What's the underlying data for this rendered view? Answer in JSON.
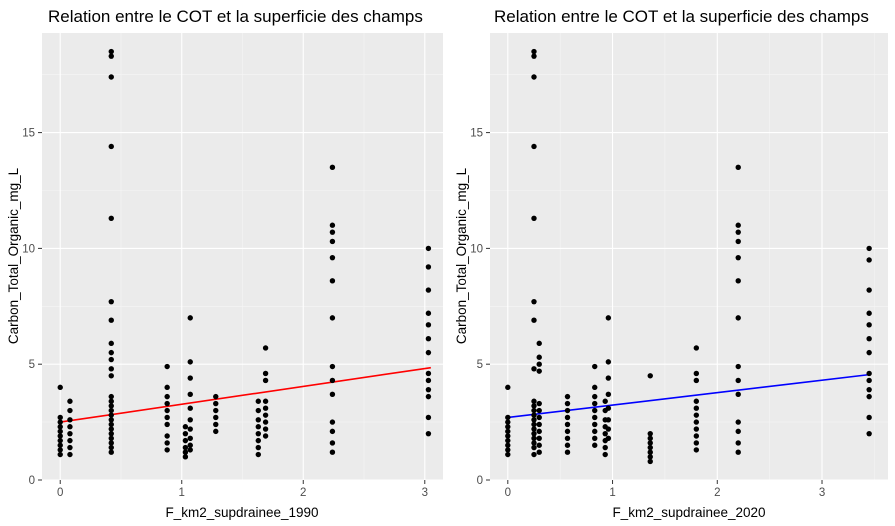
{
  "chart_data": [
    {
      "type": "scatter",
      "title": "Relation entre le COT et la superficie des champs",
      "xlabel": "F_km2_supdrainee_1990",
      "ylabel": "Carbon_Total_Organic_mg_L",
      "xlim": [
        -0.15,
        3.15
      ],
      "ylim": [
        0,
        19.3
      ],
      "xticks": [
        0,
        1,
        2,
        3
      ],
      "xtick_labels": [
        "0",
        "1",
        "2",
        "3"
      ],
      "yticks": [
        0,
        5,
        10,
        15
      ],
      "ytick_labels": [
        "0",
        "5",
        "10",
        "15"
      ],
      "grid": true,
      "background": "#EBEBEB",
      "fit_line": {
        "color": "#FF0000",
        "x": [
          0,
          3.05
        ],
        "y": [
          2.5,
          4.85
        ]
      },
      "points": [
        [
          0,
          4.0
        ],
        [
          0,
          2.7
        ],
        [
          0,
          2.5
        ],
        [
          0,
          2.3
        ],
        [
          0,
          2.1
        ],
        [
          0,
          1.9
        ],
        [
          0,
          1.7
        ],
        [
          0,
          1.5
        ],
        [
          0,
          1.3
        ],
        [
          0,
          1.1
        ],
        [
          0.08,
          3.4
        ],
        [
          0.08,
          3.0
        ],
        [
          0.08,
          2.6
        ],
        [
          0.08,
          2.3
        ],
        [
          0.08,
          2.0
        ],
        [
          0.08,
          1.7
        ],
        [
          0.08,
          1.4
        ],
        [
          0.08,
          1.1
        ],
        [
          0.42,
          18.5
        ],
        [
          0.42,
          18.3
        ],
        [
          0.42,
          17.4
        ],
        [
          0.42,
          14.4
        ],
        [
          0.42,
          11.3
        ],
        [
          0.42,
          7.7
        ],
        [
          0.42,
          6.9
        ],
        [
          0.42,
          5.9
        ],
        [
          0.42,
          5.5
        ],
        [
          0.42,
          5.2
        ],
        [
          0.42,
          4.8
        ],
        [
          0.42,
          4.5
        ],
        [
          0.42,
          3.6
        ],
        [
          0.42,
          3.4
        ],
        [
          0.42,
          3.2
        ],
        [
          0.42,
          3.0
        ],
        [
          0.42,
          2.8
        ],
        [
          0.42,
          2.6
        ],
        [
          0.42,
          2.4
        ],
        [
          0.42,
          2.2
        ],
        [
          0.42,
          2.0
        ],
        [
          0.42,
          1.8
        ],
        [
          0.42,
          1.6
        ],
        [
          0.42,
          1.4
        ],
        [
          0.42,
          1.2
        ],
        [
          0.88,
          4.9
        ],
        [
          0.88,
          4.0
        ],
        [
          0.88,
          3.6
        ],
        [
          0.88,
          3.3
        ],
        [
          0.88,
          3.0
        ],
        [
          0.88,
          2.7
        ],
        [
          0.88,
          2.4
        ],
        [
          0.88,
          1.9
        ],
        [
          0.88,
          1.6
        ],
        [
          0.88,
          1.3
        ],
        [
          1.03,
          2.3
        ],
        [
          1.03,
          2.0
        ],
        [
          1.03,
          1.7
        ],
        [
          1.03,
          1.4
        ],
        [
          1.03,
          1.2
        ],
        [
          1.03,
          1.0
        ],
        [
          1.07,
          7.0
        ],
        [
          1.07,
          5.1
        ],
        [
          1.07,
          4.4
        ],
        [
          1.07,
          3.7
        ],
        [
          1.07,
          3.1
        ],
        [
          1.07,
          2.6
        ],
        [
          1.07,
          2.2
        ],
        [
          1.07,
          1.8
        ],
        [
          1.07,
          1.5
        ],
        [
          1.07,
          1.3
        ],
        [
          1.28,
          3.6
        ],
        [
          1.28,
          3.3
        ],
        [
          1.28,
          3.0
        ],
        [
          1.28,
          2.7
        ],
        [
          1.28,
          2.4
        ],
        [
          1.28,
          2.1
        ],
        [
          1.63,
          3.4
        ],
        [
          1.63,
          3.0
        ],
        [
          1.63,
          2.6
        ],
        [
          1.63,
          2.3
        ],
        [
          1.63,
          2.0
        ],
        [
          1.63,
          1.7
        ],
        [
          1.63,
          1.4
        ],
        [
          1.63,
          1.1
        ],
        [
          1.69,
          5.7
        ],
        [
          1.69,
          4.6
        ],
        [
          1.69,
          4.3
        ],
        [
          1.69,
          3.4
        ],
        [
          1.69,
          3.1
        ],
        [
          1.69,
          2.8
        ],
        [
          1.69,
          2.5
        ],
        [
          1.69,
          2.2
        ],
        [
          1.69,
          1.9
        ],
        [
          2.24,
          13.5
        ],
        [
          2.24,
          11.0
        ],
        [
          2.24,
          10.7
        ],
        [
          2.24,
          10.3
        ],
        [
          2.24,
          9.6
        ],
        [
          2.24,
          8.6
        ],
        [
          2.24,
          7.0
        ],
        [
          2.24,
          4.9
        ],
        [
          2.24,
          4.3
        ],
        [
          2.24,
          3.7
        ],
        [
          2.24,
          2.5
        ],
        [
          2.24,
          2.1
        ],
        [
          2.24,
          1.6
        ],
        [
          2.24,
          1.2
        ],
        [
          3.03,
          10.0
        ],
        [
          3.03,
          9.2
        ],
        [
          3.03,
          8.2
        ],
        [
          3.03,
          7.2
        ],
        [
          3.03,
          6.7
        ],
        [
          3.03,
          6.1
        ],
        [
          3.03,
          5.5
        ],
        [
          3.03,
          4.6
        ],
        [
          3.03,
          4.3
        ],
        [
          3.03,
          3.9
        ],
        [
          3.03,
          3.6
        ],
        [
          3.03,
          2.7
        ],
        [
          3.03,
          2.0
        ]
      ]
    },
    {
      "type": "scatter",
      "title": "Relation entre le COT et la superficie des champs",
      "xlabel": "F_km2_supdrainee_2020",
      "ylabel": "Carbon_Total_Organic_mg_L",
      "xlim": [
        -0.17,
        3.63
      ],
      "ylim": [
        0,
        19.3
      ],
      "xticks": [
        0,
        1,
        2,
        3
      ],
      "xtick_labels": [
        "0",
        "1",
        "2",
        "3"
      ],
      "yticks": [
        0,
        5,
        10,
        15
      ],
      "ytick_labels": [
        "0",
        "5",
        "10",
        "15"
      ],
      "grid": true,
      "background": "#EBEBEB",
      "fit_line": {
        "color": "#0000FF",
        "x": [
          0,
          3.45
        ],
        "y": [
          2.7,
          4.55
        ]
      },
      "points": [
        [
          0,
          4.0
        ],
        [
          0,
          2.7
        ],
        [
          0,
          2.5
        ],
        [
          0,
          2.3
        ],
        [
          0,
          2.1
        ],
        [
          0,
          1.9
        ],
        [
          0,
          1.7
        ],
        [
          0,
          1.5
        ],
        [
          0,
          1.3
        ],
        [
          0,
          1.1
        ],
        [
          0.25,
          18.5
        ],
        [
          0.25,
          18.3
        ],
        [
          0.25,
          17.4
        ],
        [
          0.25,
          14.4
        ],
        [
          0.25,
          11.3
        ],
        [
          0.25,
          7.7
        ],
        [
          0.25,
          6.9
        ],
        [
          0.25,
          4.8
        ],
        [
          0.25,
          3.4
        ],
        [
          0.25,
          3.2
        ],
        [
          0.25,
          3.0
        ],
        [
          0.25,
          2.8
        ],
        [
          0.25,
          2.6
        ],
        [
          0.25,
          2.4
        ],
        [
          0.25,
          2.2
        ],
        [
          0.25,
          2.0
        ],
        [
          0.25,
          1.8
        ],
        [
          0.25,
          1.6
        ],
        [
          0.25,
          1.4
        ],
        [
          0.25,
          1.1
        ],
        [
          0.3,
          5.9
        ],
        [
          0.3,
          5.3
        ],
        [
          0.3,
          5.0
        ],
        [
          0.3,
          4.7
        ],
        [
          0.3,
          3.3
        ],
        [
          0.3,
          3.0
        ],
        [
          0.3,
          2.7
        ],
        [
          0.3,
          2.4
        ],
        [
          0.3,
          2.1
        ],
        [
          0.3,
          1.8
        ],
        [
          0.3,
          1.5
        ],
        [
          0.3,
          1.2
        ],
        [
          0.57,
          3.6
        ],
        [
          0.57,
          3.3
        ],
        [
          0.57,
          3.0
        ],
        [
          0.57,
          2.7
        ],
        [
          0.57,
          2.4
        ],
        [
          0.57,
          2.1
        ],
        [
          0.57,
          1.8
        ],
        [
          0.57,
          1.5
        ],
        [
          0.57,
          1.2
        ],
        [
          0.83,
          4.9
        ],
        [
          0.83,
          4.0
        ],
        [
          0.83,
          3.6
        ],
        [
          0.83,
          3.3
        ],
        [
          0.83,
          3.0
        ],
        [
          0.83,
          2.7
        ],
        [
          0.83,
          2.4
        ],
        [
          0.83,
          2.1
        ],
        [
          0.83,
          1.8
        ],
        [
          0.83,
          1.5
        ],
        [
          0.93,
          3.4
        ],
        [
          0.93,
          3.0
        ],
        [
          0.93,
          2.6
        ],
        [
          0.93,
          2.3
        ],
        [
          0.93,
          2.0
        ],
        [
          0.93,
          1.7
        ],
        [
          0.93,
          1.4
        ],
        [
          0.93,
          1.1
        ],
        [
          0.96,
          7.0
        ],
        [
          0.96,
          5.1
        ],
        [
          0.96,
          4.4
        ],
        [
          0.96,
          3.7
        ],
        [
          0.96,
          3.1
        ],
        [
          0.96,
          2.6
        ],
        [
          0.96,
          2.2
        ],
        [
          0.96,
          1.8
        ],
        [
          1.36,
          4.5
        ],
        [
          1.36,
          2.0
        ],
        [
          1.36,
          1.8
        ],
        [
          1.36,
          1.6
        ],
        [
          1.36,
          1.4
        ],
        [
          1.36,
          1.2
        ],
        [
          1.36,
          1.0
        ],
        [
          1.36,
          0.8
        ],
        [
          1.8,
          5.7
        ],
        [
          1.8,
          4.6
        ],
        [
          1.8,
          4.3
        ],
        [
          1.8,
          3.4
        ],
        [
          1.8,
          3.1
        ],
        [
          1.8,
          2.8
        ],
        [
          1.8,
          2.5
        ],
        [
          1.8,
          2.2
        ],
        [
          1.8,
          1.9
        ],
        [
          1.8,
          1.6
        ],
        [
          1.8,
          1.3
        ],
        [
          2.2,
          13.5
        ],
        [
          2.2,
          11.0
        ],
        [
          2.2,
          10.7
        ],
        [
          2.2,
          10.3
        ],
        [
          2.2,
          9.6
        ],
        [
          2.2,
          8.6
        ],
        [
          2.2,
          7.0
        ],
        [
          2.2,
          4.9
        ],
        [
          2.2,
          4.3
        ],
        [
          2.2,
          3.7
        ],
        [
          2.2,
          2.5
        ],
        [
          2.2,
          2.1
        ],
        [
          2.2,
          1.6
        ],
        [
          2.2,
          1.2
        ],
        [
          3.45,
          10.0
        ],
        [
          3.45,
          9.5
        ],
        [
          3.45,
          8.2
        ],
        [
          3.45,
          7.2
        ],
        [
          3.45,
          6.7
        ],
        [
          3.45,
          6.1
        ],
        [
          3.45,
          5.5
        ],
        [
          3.45,
          4.6
        ],
        [
          3.45,
          4.3
        ],
        [
          3.45,
          3.9
        ],
        [
          3.45,
          3.6
        ],
        [
          3.45,
          2.7
        ],
        [
          3.45,
          2.0
        ]
      ]
    }
  ]
}
